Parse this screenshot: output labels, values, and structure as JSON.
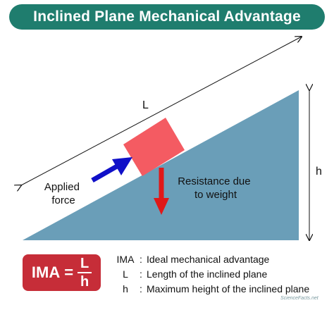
{
  "title": "Inclined Plane Mechanical Advantage",
  "labels": {
    "length": "L",
    "height": "h",
    "applied_force": [
      "Applied",
      "force"
    ],
    "resistance": [
      "Resistance due",
      "to weight"
    ]
  },
  "formula": {
    "lhs": "IMA",
    "equals": "=",
    "numerator": "L",
    "denominator": "h"
  },
  "legend": [
    {
      "term": "IMA",
      "sep": ":",
      "definition": "Ideal mechanical advantage"
    },
    {
      "term": "L",
      "sep": ":",
      "definition": "Length of the inclined plane"
    },
    {
      "term": "h",
      "sep": ":",
      "definition": "Maximum height of the inclined plane"
    }
  ],
  "watermark": "ScienceFacts.net",
  "colors": {
    "title_bg": "#1f7d6e",
    "incline": "#6a9eb8",
    "block": "#f45b62",
    "applied_arrow": "#1010c8",
    "weight_arrow": "#e01818",
    "formula_bg": "#c62d38"
  }
}
